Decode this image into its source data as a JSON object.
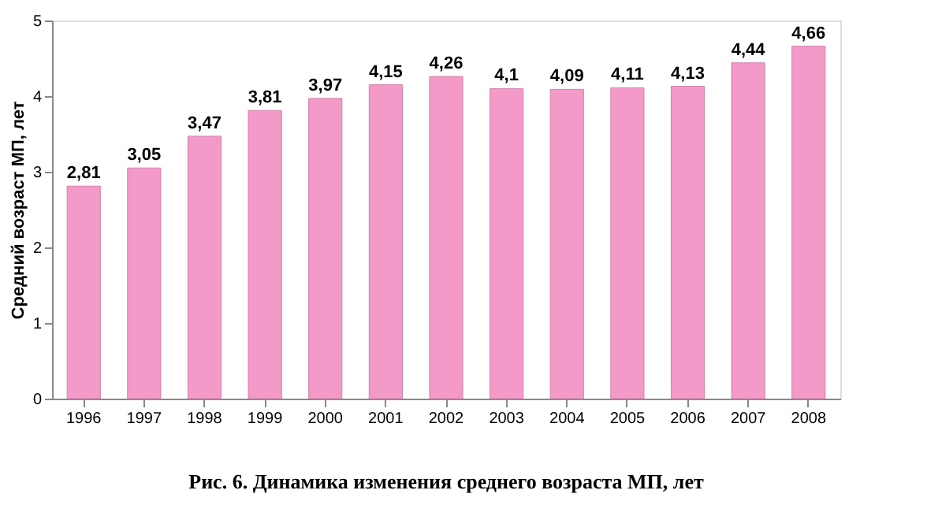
{
  "chart_data": {
    "type": "bar",
    "title": "Рис. 6. Динамика изменения среднего возраста МП, лет",
    "ylabel": "Средний возраст МП, лет",
    "categories": [
      "1996",
      "1997",
      "1998",
      "1999",
      "2000",
      "2001",
      "2002",
      "2003",
      "2004",
      "2005",
      "2006",
      "2007",
      "2008"
    ],
    "values": [
      2.81,
      3.05,
      3.47,
      3.81,
      3.97,
      4.15,
      4.26,
      4.1,
      4.09,
      4.11,
      4.13,
      4.44,
      4.66
    ],
    "value_labels": [
      "2,81",
      "3,05",
      "3,47",
      "3,81",
      "3,97",
      "4,15",
      "4,26",
      "4,1",
      "4,09",
      "4,11",
      "4,13",
      "4,44",
      "4,66"
    ],
    "color": "#f49ac8",
    "ylim": [
      0,
      5
    ],
    "yticks": [
      0,
      1,
      2,
      3,
      4,
      5
    ],
    "grid": false
  }
}
